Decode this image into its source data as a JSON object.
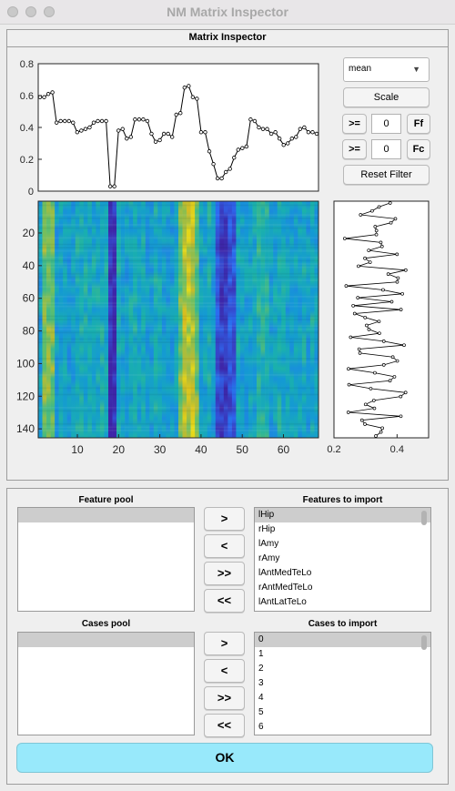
{
  "window": {
    "title": "NM Matrix Inspector"
  },
  "inspector": {
    "title": "Matrix Inspector",
    "stat_select": "mean",
    "scale_label": "Scale",
    "filter_f": {
      "op": ">=",
      "value": "0",
      "apply_label": "Ff"
    },
    "filter_c": {
      "op": ">=",
      "value": "0",
      "apply_label": "Fc"
    },
    "reset_label": "Reset Filter"
  },
  "colors": {
    "ok_bg": "#98e9fb",
    "heatmap_low": "#3d2bd6",
    "heatmap_high": "#f6e62c"
  },
  "chart_data": [
    {
      "type": "line",
      "title": "",
      "xlabel": "",
      "ylabel": "",
      "ylim": [
        0,
        0.8
      ],
      "yticks": [
        "0",
        "0.2",
        "0.4",
        "0.6",
        "0.8"
      ],
      "x": [
        1,
        2,
        3,
        4,
        5,
        6,
        7,
        8,
        9,
        10,
        11,
        12,
        13,
        14,
        15,
        16,
        17,
        18,
        19,
        20,
        21,
        22,
        23,
        24,
        25,
        26,
        27,
        28,
        29,
        30,
        31,
        32,
        33,
        34,
        35,
        36,
        37,
        38,
        39,
        40,
        41,
        42,
        43,
        44,
        45,
        46,
        47,
        48,
        49,
        50,
        51,
        52,
        53,
        54,
        55,
        56,
        57,
        58,
        59,
        60,
        61,
        62,
        63,
        64,
        65,
        66,
        67,
        68
      ],
      "values": [
        0.59,
        0.59,
        0.61,
        0.62,
        0.43,
        0.44,
        0.44,
        0.44,
        0.43,
        0.37,
        0.38,
        0.39,
        0.4,
        0.43,
        0.44,
        0.44,
        0.44,
        0.03,
        0.03,
        0.38,
        0.39,
        0.33,
        0.34,
        0.45,
        0.45,
        0.45,
        0.44,
        0.36,
        0.31,
        0.32,
        0.36,
        0.36,
        0.34,
        0.48,
        0.49,
        0.65,
        0.66,
        0.59,
        0.58,
        0.37,
        0.37,
        0.25,
        0.17,
        0.08,
        0.08,
        0.12,
        0.14,
        0.21,
        0.26,
        0.27,
        0.28,
        0.45,
        0.44,
        0.4,
        0.39,
        0.39,
        0.36,
        0.37,
        0.33,
        0.29,
        0.3,
        0.33,
        0.34,
        0.39,
        0.4,
        0.37,
        0.37,
        0.36
      ]
    },
    {
      "type": "heatmap",
      "xticks": [
        "10",
        "20",
        "30",
        "40",
        "50",
        "60"
      ],
      "yticks": [
        "20",
        "40",
        "60",
        "80",
        "100",
        "120",
        "140"
      ],
      "n_cols": 68,
      "n_rows": 145
    },
    {
      "type": "line",
      "orientation": "vertical",
      "xticks": [
        "0.2",
        "0.4"
      ],
      "xlim": [
        0.2,
        0.5
      ],
      "points": 145
    }
  ],
  "import": {
    "feature_pool": {
      "label": "Feature pool",
      "items": [
        ""
      ]
    },
    "features_to_import": {
      "label": "Features to import",
      "items": [
        "lHip",
        "rHip",
        "lAmy",
        "rAmy",
        "lAntMedTeLo",
        "rAntMedTeLo",
        "lAntLatTeLo"
      ]
    },
    "cases_pool": {
      "label": "Cases pool",
      "items": [
        ""
      ]
    },
    "cases_to_import": {
      "label": "Cases to import",
      "items": [
        "0",
        "1",
        "2",
        "3",
        "4",
        "5",
        "6"
      ]
    },
    "move_buttons": [
      ">",
      "<",
      ">>",
      "<<"
    ],
    "ok_label": "OK"
  }
}
